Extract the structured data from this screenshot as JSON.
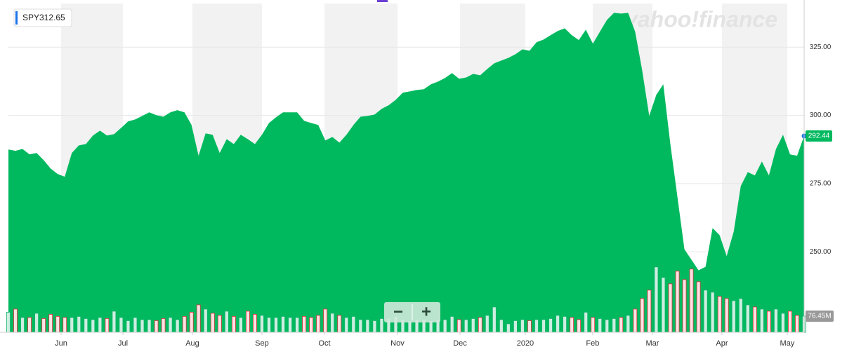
{
  "chart_data": {
    "type": "area",
    "watermark": "yahoo!finance",
    "legend_symbol": "SPY",
    "legend_value": 312.65,
    "controls": {
      "zoom_out": "−",
      "zoom_in": "+"
    },
    "xlim": [
      0,
      113
    ],
    "xticks": [
      {
        "value": 7.48,
        "label": "Jun"
      },
      {
        "value": 16.26,
        "label": "Jul"
      },
      {
        "value": 26.13,
        "label": "Aug"
      },
      {
        "value": 36.0,
        "label": "Sep"
      },
      {
        "value": 44.88,
        "label": "Oct"
      },
      {
        "value": 55.25,
        "label": "Nov"
      },
      {
        "value": 64.13,
        "label": "Dec"
      },
      {
        "value": 73.4,
        "label": "2020"
      },
      {
        "value": 82.97,
        "label": "Feb"
      },
      {
        "value": 91.45,
        "label": "Mar"
      },
      {
        "value": 101.33,
        "label": "Apr"
      },
      {
        "value": 110.6,
        "label": "May"
      }
    ],
    "ylim": [
      220.5,
      341
    ],
    "yticks": [
      {
        "value": 250,
        "label": "250.00"
      },
      {
        "value": 275,
        "label": "275.00"
      },
      {
        "value": 300,
        "label": "300.00"
      },
      {
        "value": 325,
        "label": "325.00"
      }
    ],
    "y2lim": [
      0,
      1560
    ],
    "grid": true,
    "up_color": "#14b36b",
    "down_color": "#e0303a",
    "series": [
      {
        "name": "SPY",
        "color": "#00b95f",
        "values": [
          287.5,
          287.0,
          287.7,
          285.7,
          286.2,
          283.6,
          280.5,
          278.5,
          277.5,
          286.2,
          289.0,
          289.5,
          292.6,
          294.4,
          292.6,
          293.1,
          295.4,
          297.8,
          298.5,
          299.8,
          301.1,
          300.1,
          299.5,
          301.1,
          301.9,
          301.1,
          296.5,
          285.2,
          293.4,
          292.9,
          286.2,
          291.3,
          289.5,
          292.9,
          291.3,
          289.5,
          292.9,
          297.2,
          299.3,
          301.1,
          301.1,
          301.1,
          298.0,
          297.2,
          296.5,
          290.8,
          292.1,
          290.0,
          292.9,
          296.5,
          299.5,
          299.8,
          300.3,
          302.4,
          303.7,
          305.7,
          308.3,
          308.8,
          309.3,
          309.6,
          311.4,
          312.4,
          313.7,
          315.5,
          313.4,
          313.9,
          315.2,
          314.7,
          317.0,
          319.1,
          320.1,
          321.1,
          322.4,
          324.2,
          323.7,
          326.8,
          327.8,
          329.4,
          330.9,
          331.9,
          329.4,
          327.6,
          331.4,
          326.3,
          330.7,
          335.0,
          337.6,
          337.3,
          337.6,
          330.7,
          316.5,
          299.8,
          307.5,
          311.4,
          289.5,
          270.2,
          250.9,
          247.1,
          243.2,
          244.5,
          258.7,
          256.1,
          248.4,
          257.4,
          274.1,
          279.2,
          278.0,
          283.1,
          278.0,
          287.7,
          292.9,
          285.7,
          285.2,
          292.44
        ]
      },
      {
        "name": "Volume",
        "axis": "y2",
        "last_value_label": "76.45M",
        "values": [
          95,
          110,
          70,
          70,
          90,
          65,
          85,
          75,
          70,
          70,
          75,
          65,
          60,
          70,
          65,
          100,
          70,
          55,
          70,
          60,
          60,
          55,
          65,
          70,
          60,
          75,
          95,
          130,
          110,
          90,
          80,
          100,
          75,
          70,
          100,
          85,
          80,
          70,
          70,
          75,
          70,
          70,
          75,
          70,
          80,
          110,
          90,
          80,
          70,
          75,
          60,
          60,
          55,
          65,
          65,
          75,
          60,
          55,
          60,
          60,
          55,
          60,
          60,
          75,
          60,
          60,
          65,
          70,
          80,
          120,
          60,
          40,
          55,
          60,
          55,
          60,
          60,
          65,
          80,
          75,
          70,
          60,
          95,
          70,
          65,
          60,
          65,
          70,
          80,
          110,
          160,
          200,
          310,
          260,
          230,
          290,
          250,
          300,
          240,
          200,
          190,
          170,
          160,
          150,
          160,
          130,
          120,
          110,
          100,
          110,
          90,
          100,
          80,
          76.45
        ]
      }
    ]
  }
}
